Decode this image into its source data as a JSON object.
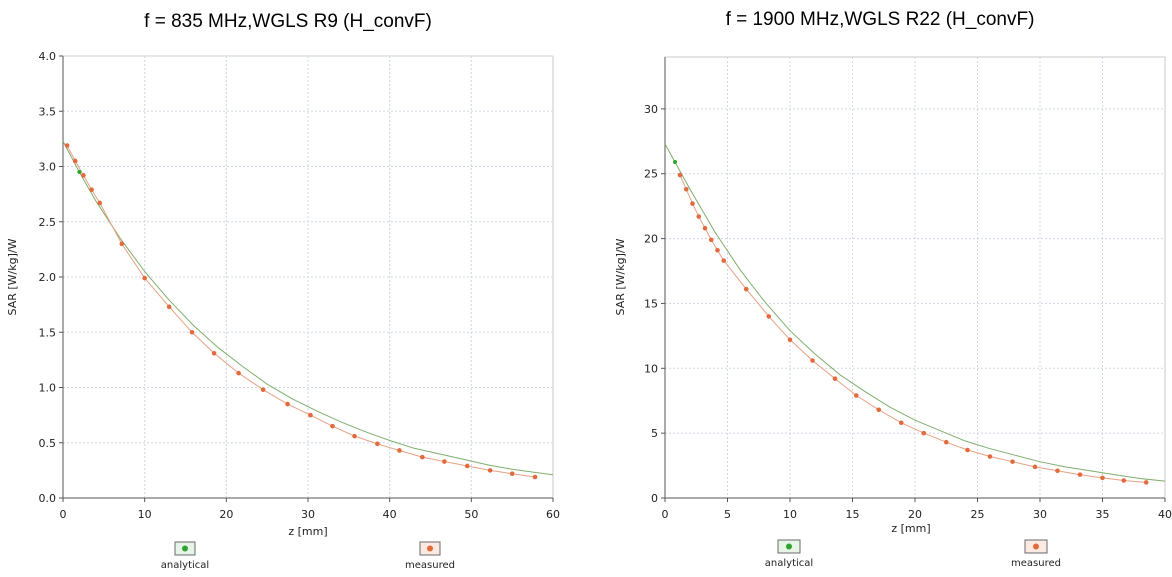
{
  "chart_data": [
    {
      "type": "scatter",
      "title": "f = 835 MHz,WGLS R9 (H_convF)",
      "xlabel": "z [mm]",
      "ylabel": "SAR [W/kg]/W",
      "xlim": [
        0,
        60
      ],
      "ylim": [
        0,
        4.0
      ],
      "xticks": [
        "0",
        "10",
        "20",
        "30",
        "40",
        "50",
        "60"
      ],
      "yticks": [
        "0.0",
        "0.5",
        "1.0",
        "1.5",
        "2.0",
        "2.5",
        "3.0",
        "3.5",
        "4.0"
      ],
      "grid": true,
      "legend_position": "bottom",
      "series": [
        {
          "name": "analytical",
          "color": "#2fa52f",
          "x": [
            0,
            2,
            4,
            7,
            10,
            13,
            16,
            19,
            22,
            25,
            28,
            31,
            34,
            37,
            40,
            43,
            46,
            49,
            52,
            55,
            58,
            60
          ],
          "values": [
            3.23,
            2.95,
            2.69,
            2.35,
            2.05,
            1.79,
            1.56,
            1.36,
            1.19,
            1.03,
            0.9,
            0.79,
            0.69,
            0.6,
            0.52,
            0.45,
            0.4,
            0.35,
            0.3,
            0.26,
            0.23,
            0.21
          ]
        },
        {
          "name": "measured",
          "color": "#e26a3c",
          "x": [
            0.5,
            1.5,
            2.5,
            3.5,
            4.5,
            7.2,
            10,
            13,
            15.8,
            18.5,
            21.5,
            24.5,
            27.5,
            30.3,
            33,
            35.7,
            38.5,
            41.2,
            44,
            46.7,
            49.5,
            52.3,
            55,
            57.8
          ],
          "values": [
            3.19,
            3.05,
            2.92,
            2.79,
            2.67,
            2.3,
            1.99,
            1.73,
            1.5,
            1.31,
            1.13,
            0.98,
            0.85,
            0.75,
            0.65,
            0.56,
            0.49,
            0.43,
            0.37,
            0.33,
            0.29,
            0.25,
            0.22,
            0.19
          ]
        }
      ]
    },
    {
      "type": "scatter",
      "title": "f = 1900 MHz,WGLS R22 (H_convF)",
      "xlabel": "z [mm]",
      "ylabel": "SAR [W/kg]/W",
      "xlim": [
        0,
        40
      ],
      "ylim": [
        0,
        34
      ],
      "xticks": [
        "0",
        "5",
        "10",
        "15",
        "20",
        "25",
        "30",
        "35",
        "40"
      ],
      "yticks": [
        "0",
        "5",
        "10",
        "15",
        "20",
        "25",
        "30"
      ],
      "grid": true,
      "legend_position": "bottom",
      "series": [
        {
          "name": "analytical",
          "color": "#2fa52f",
          "x": [
            0,
            0.8,
            2,
            4,
            6,
            8,
            10,
            12,
            14,
            16,
            18,
            20,
            22,
            24,
            26,
            28,
            30,
            32,
            34,
            36,
            38,
            40
          ],
          "values": [
            27.3,
            25.9,
            23.8,
            20.5,
            17.6,
            15.1,
            12.9,
            11.1,
            9.5,
            8.2,
            7.0,
            6.0,
            5.2,
            4.4,
            3.8,
            3.3,
            2.8,
            2.4,
            2.1,
            1.8,
            1.5,
            1.3
          ]
        },
        {
          "name": "measured",
          "color": "#e26a3c",
          "x": [
            1.2,
            1.7,
            2.2,
            2.7,
            3.2,
            3.7,
            4.2,
            4.7,
            6.5,
            8.3,
            10,
            11.8,
            13.6,
            15.3,
            17.1,
            18.9,
            20.7,
            22.5,
            24.2,
            26,
            27.8,
            29.6,
            31.4,
            33.2,
            35,
            36.7,
            38.5
          ],
          "values": [
            24.9,
            23.8,
            22.7,
            21.7,
            20.8,
            19.9,
            19.1,
            18.3,
            16.1,
            14.0,
            12.2,
            10.6,
            9.2,
            7.9,
            6.8,
            5.8,
            5.0,
            4.3,
            3.7,
            3.2,
            2.8,
            2.4,
            2.1,
            1.8,
            1.55,
            1.35,
            1.2
          ]
        }
      ]
    }
  ]
}
